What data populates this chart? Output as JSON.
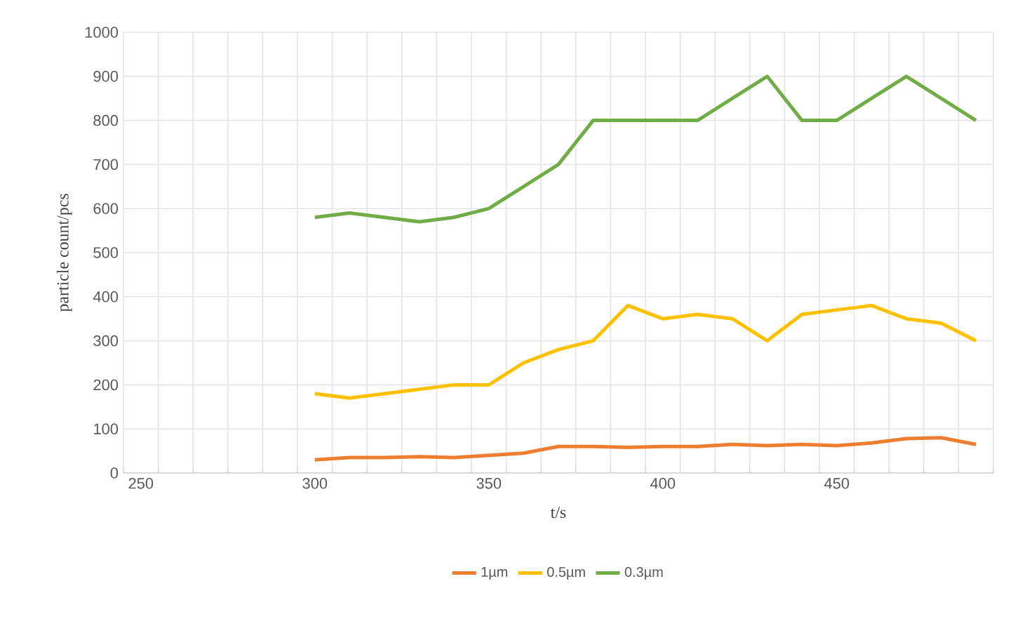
{
  "chart_data": {
    "type": "line",
    "xlabel": "t/s",
    "ylabel": "particle count/pcs",
    "x": [
      300,
      310,
      320,
      330,
      340,
      350,
      360,
      370,
      380,
      390,
      400,
      410,
      420,
      430,
      440,
      450,
      460,
      470,
      480,
      490
    ],
    "series": [
      {
        "name": "1µm",
        "color": "#ed7d31",
        "values": [
          30,
          35,
          35,
          37,
          35,
          40,
          45,
          60,
          60,
          58,
          60,
          60,
          65,
          62,
          65,
          62,
          68,
          78,
          80,
          65
        ]
      },
      {
        "name": "0.5µm",
        "color": "#ffc000",
        "values": [
          180,
          170,
          180,
          190,
          200,
          200,
          250,
          280,
          300,
          380,
          350,
          360,
          350,
          300,
          360,
          370,
          380,
          350,
          340,
          300
        ]
      },
      {
        "name": "0.3µm",
        "color": "#70ad47",
        "values": [
          580,
          590,
          580,
          570,
          580,
          600,
          650,
          700,
          800,
          800,
          800,
          800,
          850,
          900,
          800,
          800,
          850,
          900,
          850,
          800
        ]
      }
    ],
    "xlim": [
      245,
      495
    ],
    "xticks": [
      {
        "value": 245,
        "label": null
      },
      250,
      {
        "value": 255,
        "label": null
      },
      {
        "value": 265,
        "label": null
      },
      {
        "value": 275,
        "label": null
      },
      {
        "value": 285,
        "label": null
      },
      {
        "value": 295,
        "label": null
      },
      300,
      {
        "value": 305,
        "label": null
      },
      {
        "value": 315,
        "label": null
      },
      {
        "value": 325,
        "label": null
      },
      {
        "value": 335,
        "label": null
      },
      {
        "value": 345,
        "label": null
      },
      350,
      {
        "value": 355,
        "label": null
      },
      {
        "value": 365,
        "label": null
      },
      {
        "value": 375,
        "label": null
      },
      {
        "value": 385,
        "label": null
      },
      {
        "value": 395,
        "label": null
      },
      400,
      {
        "value": 405,
        "label": null
      },
      {
        "value": 415,
        "label": null
      },
      {
        "value": 425,
        "label": null
      },
      {
        "value": 435,
        "label": null
      },
      {
        "value": 445,
        "label": null
      },
      450,
      {
        "value": 455,
        "label": null
      },
      {
        "value": 465,
        "label": null
      },
      {
        "value": 475,
        "label": null
      },
      {
        "value": 485,
        "label": null
      },
      {
        "value": 495,
        "label": null
      }
    ],
    "ylim": [
      0,
      1000
    ],
    "yticks": [
      0,
      100,
      200,
      300,
      400,
      500,
      600,
      700,
      800,
      900,
      1000
    ],
    "grid": true,
    "legend": "bottom",
    "marker": "none",
    "line_style": "solid"
  }
}
